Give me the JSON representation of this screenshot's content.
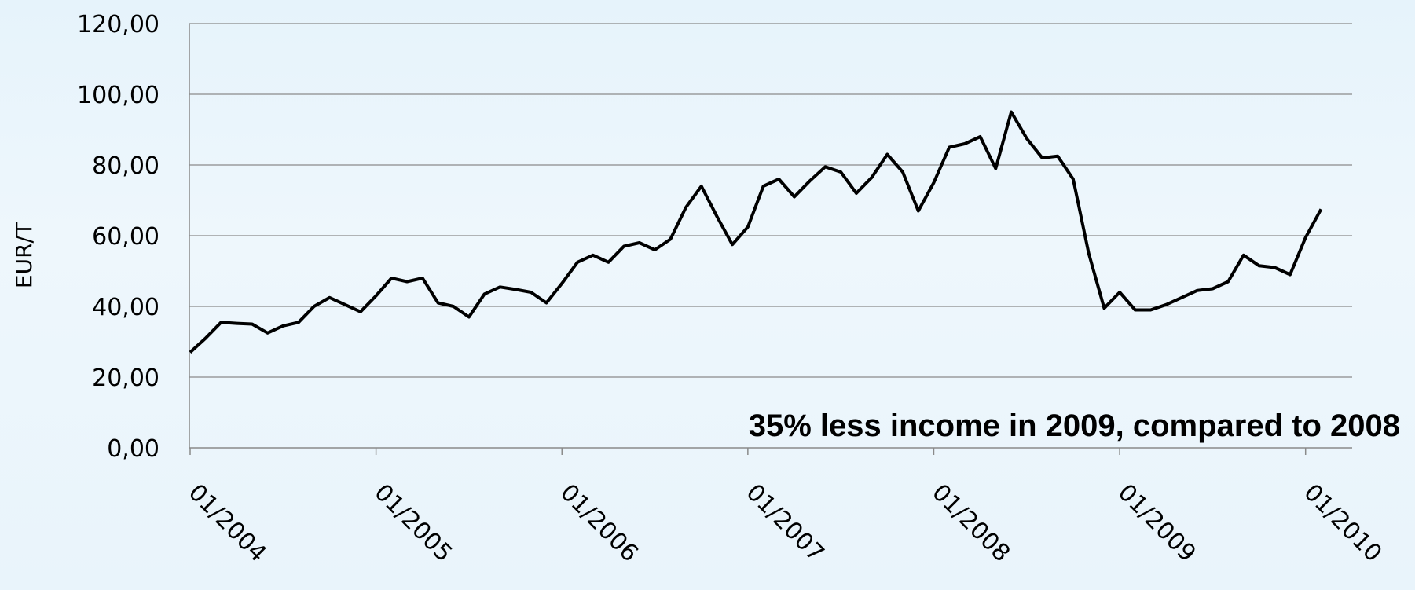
{
  "chart_data": {
    "type": "line",
    "title": "",
    "xlabel": "",
    "ylabel": "EUR/T",
    "ylim": [
      0,
      120
    ],
    "y_ticks": [
      "0,00",
      "20,00",
      "40,00",
      "60,00",
      "80,00",
      "100,00",
      "120,00"
    ],
    "x_ticks": [
      "01/2004",
      "01/2005",
      "01/2006",
      "01/2007",
      "01/2008",
      "01/2009",
      "01/2010"
    ],
    "x_start": "01/2004",
    "grid": true,
    "legend": "none",
    "annotation": "35% less income in 2009, compared to 2008",
    "line_color": "#000000",
    "series": [
      {
        "values": [
          27,
          31,
          35.5,
          35.2,
          35,
          32.5,
          34.5,
          35.5,
          40,
          42.5,
          40.5,
          38.5,
          43,
          48,
          47,
          48,
          41,
          40,
          37,
          43.5,
          45.5,
          44.8,
          44,
          41,
          46.5,
          52.5,
          54.5,
          52.5,
          57,
          58,
          56,
          59,
          68,
          74,
          65.5,
          57.5,
          62.5,
          74,
          76,
          71,
          75.5,
          79.5,
          78,
          72,
          76.5,
          83,
          78,
          67,
          75,
          85,
          86,
          88,
          79,
          95,
          87.5,
          82,
          82.5,
          76,
          55,
          39.5,
          44,
          39,
          39,
          40.5,
          42.5,
          44.5,
          45,
          47,
          54.5,
          51.5,
          51,
          49,
          59.5,
          67.5
        ]
      }
    ]
  }
}
